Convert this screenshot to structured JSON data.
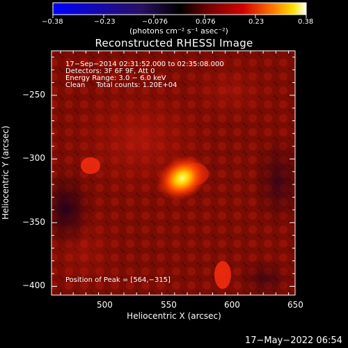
{
  "colorbar": {
    "ticks": [
      "−0.38",
      "−0.23",
      "−0.076",
      "0.076",
      "0.23",
      "0.38"
    ],
    "units": "(photons cm⁻² s⁻¹ asec⁻²)"
  },
  "plot": {
    "title": "Reconstructed RHESSI Image",
    "info": [
      "17−Sep−2014 02:31:52.000 to 02:35:08.000",
      "Detectors: 3F 6F 9F, Att 0",
      "Energy Range: 3.0 − 6.0 keV",
      "Clean     Total counts: 1.20E+04"
    ],
    "peak_text": "Position of Peak = [564,−315]",
    "xlabel": "Heliocentric X (arcsec)",
    "ylabel": "Heliocentric Y (arcsec)",
    "xticks": [
      "500",
      "550",
      "600",
      "650"
    ],
    "yticks": [
      "−250",
      "−300",
      "−350",
      "−400"
    ]
  },
  "footer": {
    "timestamp": "17−May−2022 06:54"
  },
  "colors": {
    "background": "#000000",
    "foreground": "#ffffff"
  }
}
